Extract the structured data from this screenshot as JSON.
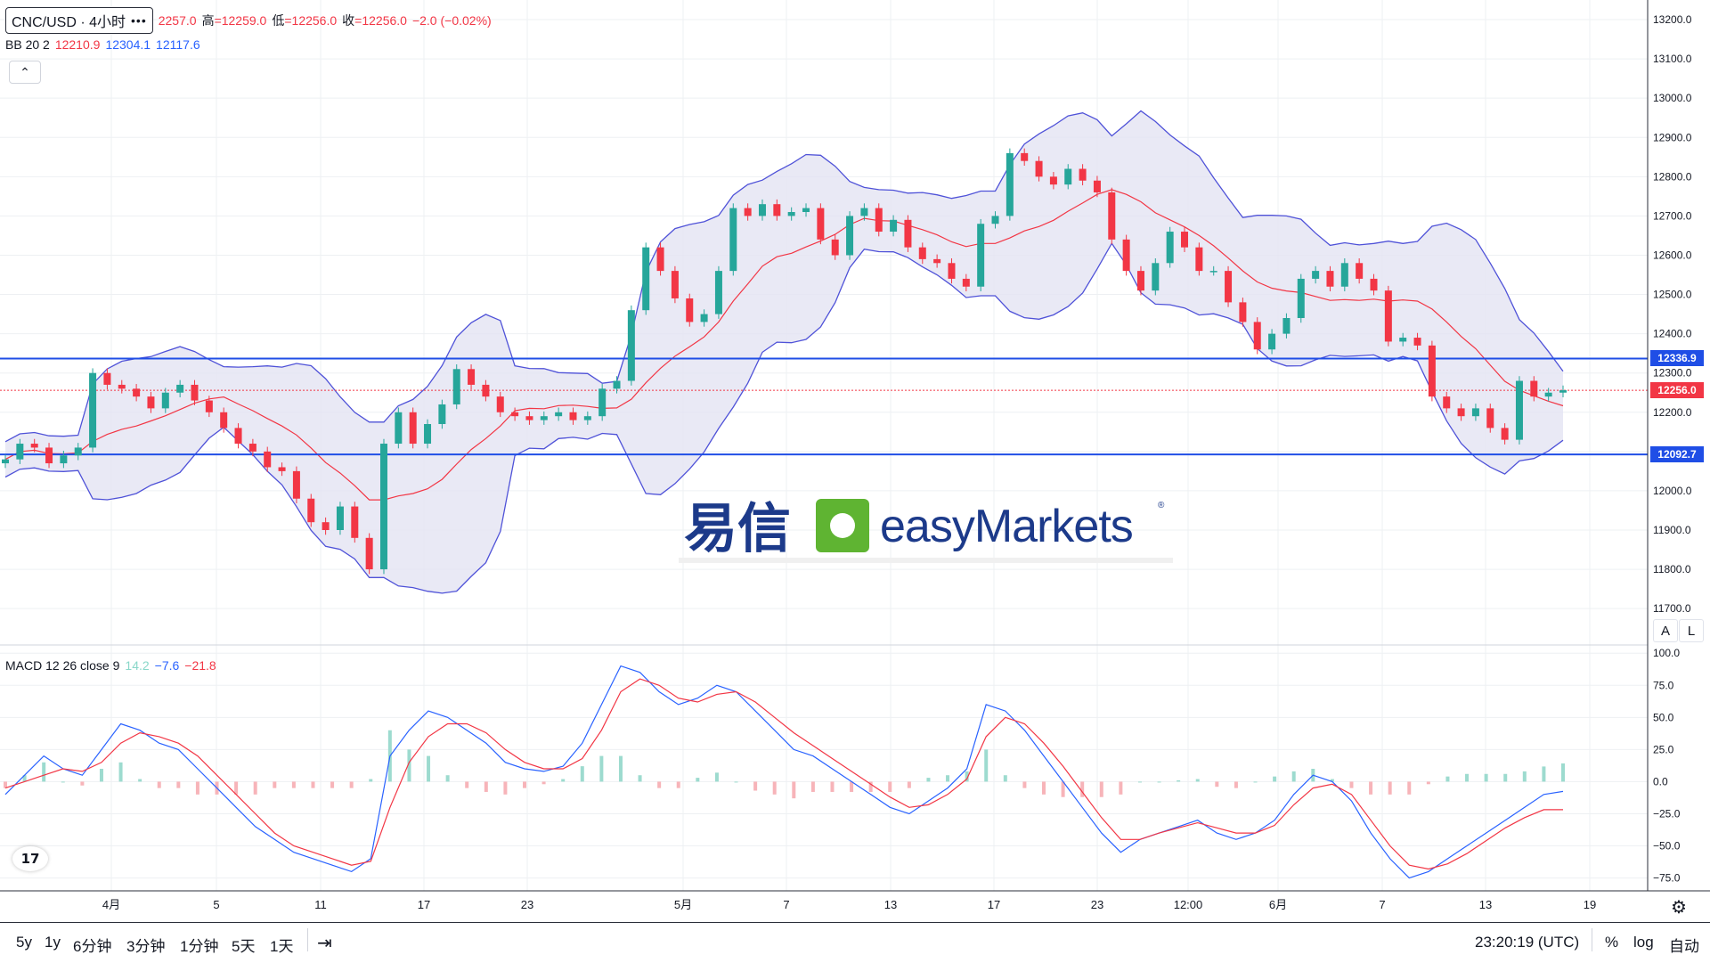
{
  "symbol": {
    "title": "CNC/USD · 4小时",
    "more_icon": "more-dots-icon"
  },
  "ohlc": {
    "open": "2257.0",
    "high_label": "高",
    "high": "=12259.0",
    "low_label": "低",
    "low": "=12256.0",
    "close_label": "收",
    "close": "=12256.0",
    "change": "−2.0 (−0.02%)"
  },
  "bb": {
    "name": "BB 20 2",
    "basis": "12210.9",
    "upper": "12304.1",
    "lower": "12117.6"
  },
  "macd": {
    "name": "MACD 12 26 close 9",
    "hist": "14.2",
    "macd": "−7.6",
    "signal": "−21.8"
  },
  "price_scale": {
    "labels": [
      "13200.0",
      "13100.0",
      "13000.0",
      "12900.0",
      "12800.0",
      "12700.0",
      "12600.0",
      "12500.0",
      "12400.0",
      "12300.0",
      "12200.0",
      "12100.0",
      "12000.0",
      "11900.0",
      "11800.0",
      "11700.0"
    ]
  },
  "macd_scale": {
    "labels": [
      "100.0",
      "75.0",
      "50.0",
      "25.0",
      "0.0",
      "−25.0",
      "−50.0",
      "−75.0"
    ]
  },
  "badges": {
    "resistance": "12336.9",
    "last": "12256.0",
    "support": "12092.7"
  },
  "time_axis": {
    "labels": [
      "4月",
      "5",
      "11",
      "17",
      "23",
      "5月",
      "7",
      "13",
      "17",
      "23",
      "12:00",
      "6月",
      "7",
      "13",
      "19"
    ]
  },
  "scale_buttons": {
    "auto": "A",
    "log": "L"
  },
  "bottom": {
    "ranges": [
      "5y",
      "1y",
      "6分钟",
      "3分钟",
      "1分钟",
      "5天",
      "1天"
    ],
    "clock": "23:20:19 (UTC)",
    "percent": "%",
    "log": "log",
    "auto": "自动"
  },
  "logo": {
    "cn": "易信",
    "en": "easyMarkets",
    "reg": "®"
  },
  "colors": {
    "up": "#26a69a",
    "down": "#f23645",
    "bb_band": "#4f52d8",
    "bb_fill": "#e3e3f3",
    "basis": "#f23645",
    "hline": "#1f4ee6"
  },
  "chart_data": {
    "type": "candlestick",
    "price_range": [
      11630,
      13250
    ],
    "support": 12092.7,
    "resistance": 12336.9,
    "last_price": 12256.0,
    "close": [
      12080,
      12120,
      12110,
      12070,
      12090,
      12110,
      12300,
      12270,
      12260,
      12240,
      12210,
      12250,
      12270,
      12230,
      12200,
      12160,
      12120,
      12100,
      12060,
      12050,
      11980,
      11920,
      11900,
      11960,
      11880,
      11800,
      12120,
      12200,
      12120,
      12170,
      12220,
      12310,
      12270,
      12240,
      12200,
      12190,
      12180,
      12190,
      12200,
      12180,
      12190,
      12260,
      12280,
      12460,
      12620,
      12560,
      12490,
      12430,
      12450,
      12560,
      12720,
      12700,
      12730,
      12700,
      12710,
      12720,
      12640,
      12600,
      12700,
      12720,
      12660,
      12690,
      12620,
      12590,
      12580,
      12540,
      12520,
      12680,
      12700,
      12860,
      12840,
      12800,
      12780,
      12820,
      12790,
      12760,
      12640,
      12560,
      12510,
      12580,
      12660,
      12620,
      12560,
      12560,
      12480,
      12430,
      12360,
      12400,
      12440,
      12540,
      12560,
      12520,
      12580,
      12540,
      12510,
      12380,
      12390,
      12370,
      12240,
      12210,
      12190,
      12210,
      12160,
      12130,
      12280,
      12240,
      12250,
      12256
    ],
    "macd_range": [
      -85,
      105
    ],
    "macd": [
      -10,
      5,
      20,
      10,
      5,
      25,
      45,
      40,
      30,
      25,
      10,
      -5,
      -20,
      -35,
      -45,
      -55,
      -60,
      -65,
      -70,
      -60,
      20,
      40,
      55,
      50,
      40,
      30,
      15,
      10,
      8,
      12,
      30,
      60,
      90,
      85,
      70,
      60,
      65,
      75,
      70,
      55,
      40,
      25,
      20,
      10,
      0,
      -10,
      -20,
      -25,
      -15,
      -5,
      10,
      60,
      55,
      40,
      20,
      0,
      -20,
      -40,
      -55,
      -45,
      -40,
      -35,
      -30,
      -40,
      -45,
      -40,
      -30,
      -10,
      5,
      0,
      -15,
      -40,
      -60,
      -75,
      -70,
      -60,
      -50,
      -40,
      -30,
      -20,
      -10,
      -7.6
    ],
    "signal": [
      -5,
      0,
      5,
      10,
      8,
      15,
      30,
      38,
      35,
      30,
      20,
      5,
      -10,
      -25,
      -40,
      -50,
      -55,
      -60,
      -65,
      -62,
      -20,
      15,
      35,
      45,
      45,
      38,
      25,
      15,
      10,
      10,
      18,
      40,
      70,
      80,
      75,
      65,
      62,
      68,
      70,
      62,
      50,
      38,
      28,
      18,
      8,
      -2,
      -12,
      -20,
      -18,
      -10,
      2,
      35,
      50,
      45,
      30,
      12,
      -8,
      -28,
      -45,
      -45,
      -40,
      -36,
      -32,
      -36,
      -40,
      -40,
      -34,
      -18,
      -5,
      -2,
      -10,
      -30,
      -50,
      -65,
      -68,
      -64,
      -56,
      -46,
      -36,
      -28,
      -21.8,
      -21.8
    ]
  }
}
